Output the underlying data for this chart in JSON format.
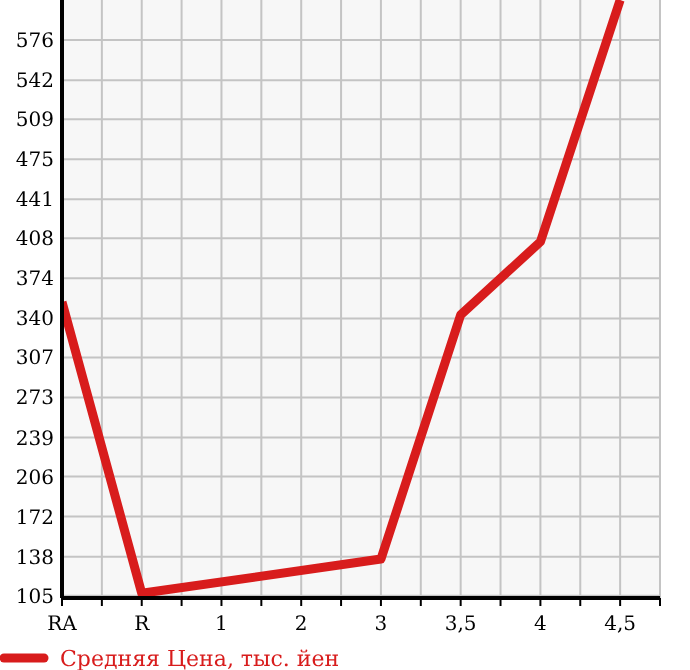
{
  "chart_data": {
    "type": "line",
    "categories": [
      "RA",
      "R",
      "1",
      "2",
      "3",
      "3,5",
      "4",
      "4,5"
    ],
    "series": [
      {
        "name": "Средняя Цена, тыс. йен",
        "color": "#d81c1c",
        "values": [
          354,
          107,
          null,
          null,
          136,
          343,
          405,
          610
        ]
      }
    ],
    "ylim": [
      103,
      610
    ],
    "yticks": [
      105,
      138,
      172,
      206,
      239,
      273,
      307,
      340,
      374,
      408,
      441,
      475,
      509,
      542,
      576
    ],
    "grid": true,
    "legend": "bottom",
    "marker": "none",
    "line_style": "solid"
  }
}
